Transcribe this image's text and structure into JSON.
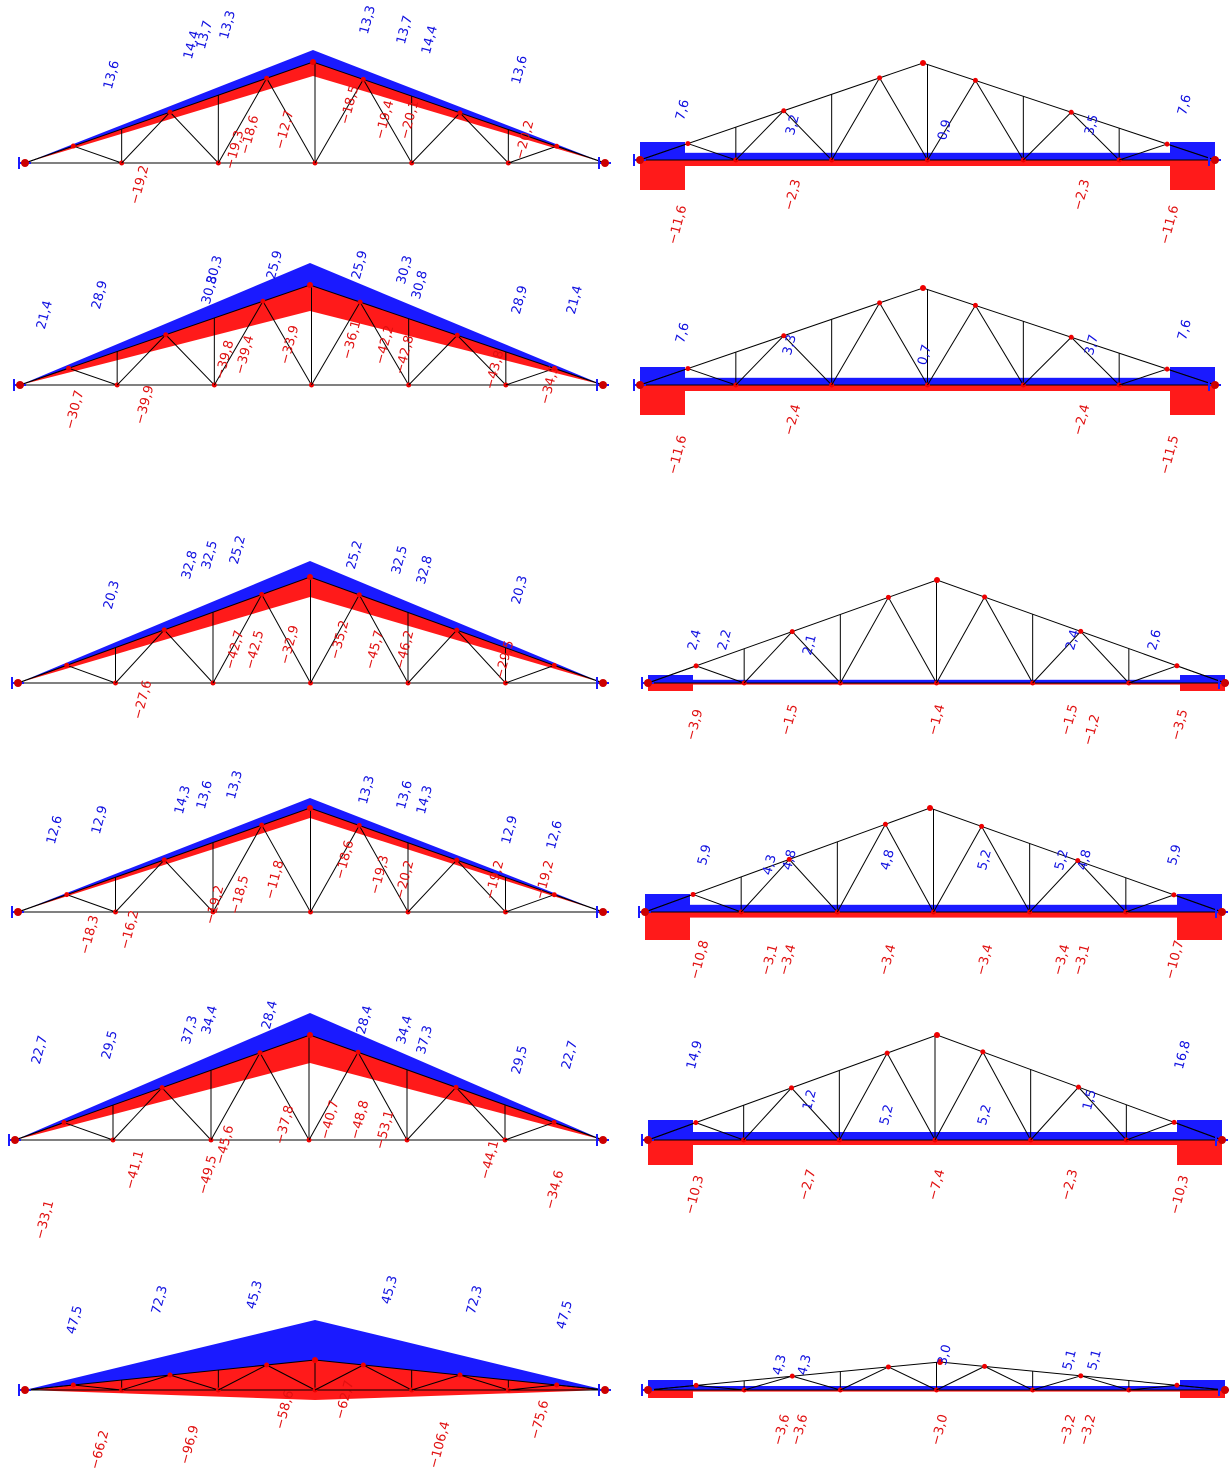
{
  "panels": [
    {
      "blue_labels": [
        "13,6",
        "14,4",
        "13,7",
        "13,3",
        "13,3",
        "13,7",
        "14,4",
        "13,6"
      ],
      "red_labels": [
        "−19,2",
        "−19,3",
        "−18,6",
        "−12,7",
        "−18,5",
        "−19,4",
        "−20,1",
        "−20,2"
      ]
    },
    {
      "blue_labels": [
        "7,6",
        "3,2",
        "0,9",
        "3,5",
        "7,6"
      ],
      "red_labels": [
        "−11,6",
        "−2,3",
        "−2,3",
        "−11,6"
      ]
    },
    {
      "blue_labels": [
        "21,4",
        "28,9",
        "30,8",
        "30,3",
        "25,9",
        "25,9",
        "30,3",
        "30,8",
        "28,9",
        "21,4"
      ],
      "red_labels": [
        "−30,7",
        "−39,9",
        "−39,8",
        "−39,4",
        "−33,9",
        "−36,1",
        "−42,2",
        "−42,8",
        "−43,8",
        "−34,5"
      ]
    },
    {
      "blue_labels": [
        "7,6",
        "3,3",
        "0,7",
        "3,7",
        "7,6"
      ],
      "red_labels": [
        "−11,6",
        "−2,4",
        "−2,4",
        "−11,5"
      ]
    },
    {
      "blue_labels": [
        "20,3",
        "32,8",
        "32,5",
        "25,2",
        "25,2",
        "32,5",
        "32,8",
        "20,3"
      ],
      "red_labels": [
        "−27,6",
        "−42,7",
        "−42,5",
        "−32,9",
        "−35,2",
        "−45,7",
        "−46,2",
        "−29,5"
      ]
    },
    {
      "blue_labels": [
        "2,4",
        "2,2",
        "2,1",
        "2,4",
        "2,6"
      ],
      "red_labels": [
        "−3,9",
        "−1,5",
        "−1,4",
        "−1,5",
        "−1,2",
        "−3,5"
      ]
    },
    {
      "blue_labels": [
        "12,6",
        "12,9",
        "14,3",
        "13,6",
        "13,3",
        "13,3",
        "13,6",
        "14,3",
        "12,9",
        "12,6"
      ],
      "red_labels": [
        "−18,3",
        "−16,2",
        "−19,2",
        "−18,5",
        "−11,8",
        "−18,6",
        "−19,3",
        "−20,2",
        "−19,2",
        "−19,2"
      ]
    },
    {
      "blue_labels": [
        "5,9",
        "4,3",
        "4,8",
        "4,8",
        "5,2",
        "5,2",
        "4,8",
        "5,9"
      ],
      "red_labels": [
        "−10,8",
        "−3,1",
        "−3,4",
        "−3,4",
        "−3,4",
        "−3,4",
        "−3,1",
        "−10,7"
      ]
    },
    {
      "blue_labels": [
        "22,7",
        "29,5",
        "37,3",
        "34,4",
        "28,4",
        "28,4",
        "34,4",
        "37,3",
        "29,5",
        "22,7"
      ],
      "red_labels": [
        "−33,1",
        "−41,1",
        "−49,5",
        "−45,6",
        "−37,8",
        "−40,7",
        "−48,8",
        "−53,1",
        "−44,1",
        "−34,6"
      ]
    },
    {
      "blue_labels": [
        "14,9",
        "1,2",
        "5,2",
        "5,2",
        "1,5",
        "16,8"
      ],
      "red_labels": [
        "−10,3",
        "−2,7",
        "−7,4",
        "−2,3",
        "−10,3"
      ]
    },
    {
      "blue_labels": [
        "47,5",
        "72,3",
        "45,3",
        "45,3",
        "72,3",
        "47,5"
      ],
      "red_labels": [
        "−66,2",
        "−96,9",
        "−58,6",
        "−62,7",
        "−106,4",
        "−75,6"
      ]
    },
    {
      "blue_labels": [
        "4,3",
        "4,3",
        "3,0",
        "5,1",
        "5,1"
      ],
      "red_labels": [
        "−3,6",
        "−3,6",
        "−3,0",
        "−3,2",
        "−3,2"
      ]
    }
  ]
}
